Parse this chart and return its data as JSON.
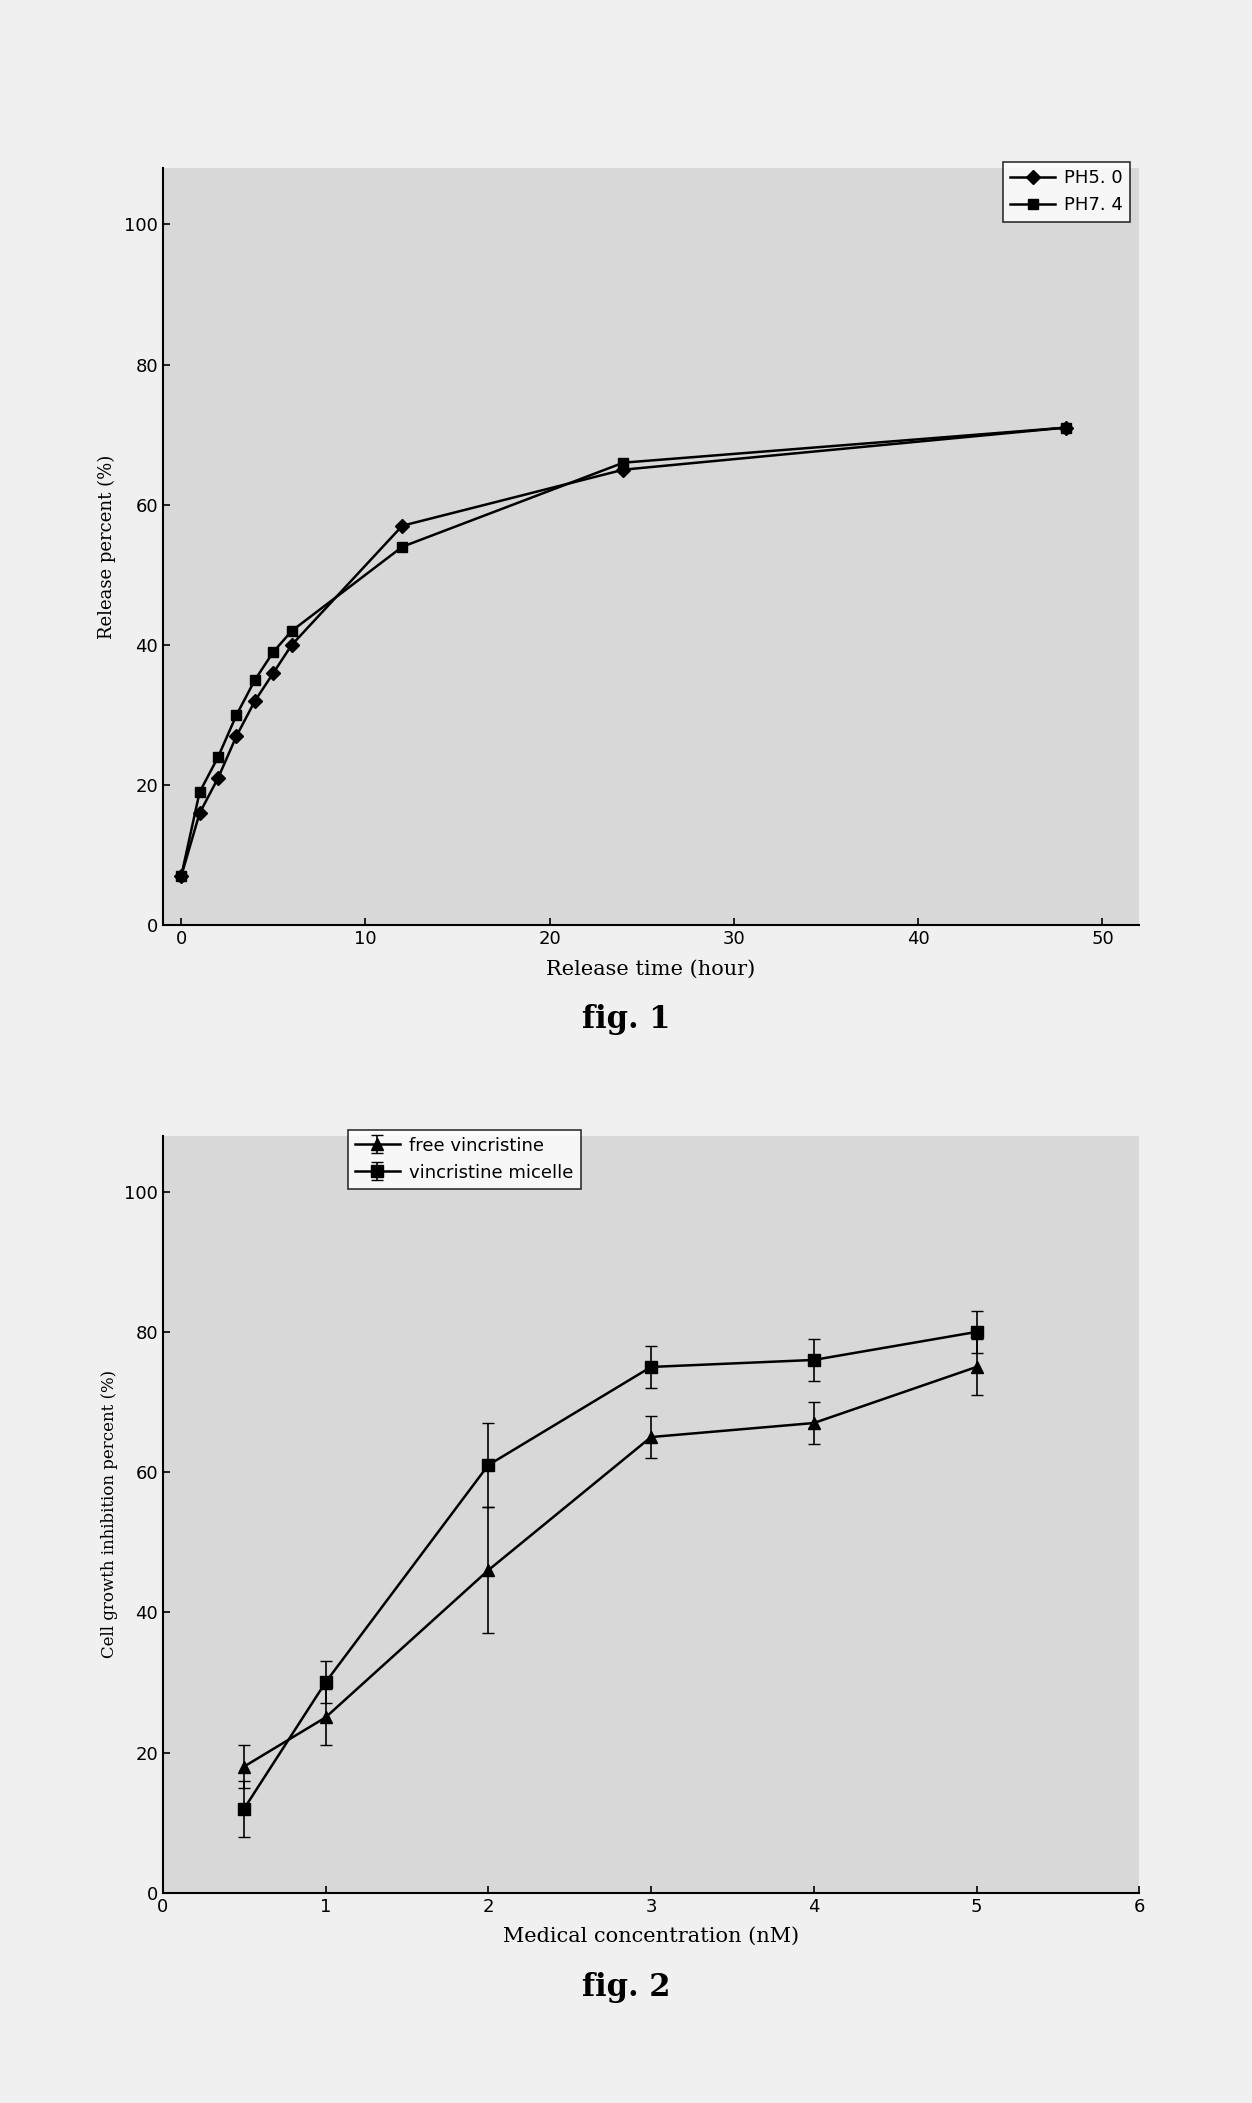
{
  "fig1": {
    "title": "fig. 1",
    "xlabel": "Release time (hour)",
    "ylabel": "Release percent (%)",
    "xlim": [
      -1,
      52
    ],
    "ylim": [
      0,
      108
    ],
    "xticks": [
      0,
      10,
      20,
      30,
      40,
      50
    ],
    "yticks": [
      0,
      20,
      40,
      60,
      80,
      100
    ],
    "ph50_x": [
      0,
      1,
      2,
      3,
      4,
      5,
      6,
      12,
      24,
      48
    ],
    "ph50_y": [
      7,
      16,
      21,
      27,
      32,
      36,
      40,
      57,
      65,
      71
    ],
    "ph74_x": [
      0,
      1,
      2,
      3,
      4,
      5,
      6,
      12,
      24,
      48
    ],
    "ph74_y": [
      7,
      19,
      24,
      30,
      35,
      39,
      42,
      54,
      66,
      71
    ],
    "legend_ph50": "PH5. 0",
    "legend_ph74": "PH7. 4",
    "color": "#000000",
    "background": "#d8d8d8"
  },
  "fig2": {
    "title": "fig. 2",
    "xlabel": "Medical concentration (nM)",
    "ylabel": "Cell growth inhibition percent (%)",
    "xlim": [
      0,
      6
    ],
    "ylim": [
      0,
      108
    ],
    "xticks": [
      0,
      1,
      2,
      3,
      4,
      5,
      6
    ],
    "yticks": [
      0,
      20,
      40,
      60,
      80,
      100
    ],
    "free_x": [
      0.5,
      1.0,
      2.0,
      3.0,
      4.0,
      5.0
    ],
    "free_y": [
      18,
      25,
      46,
      65,
      67,
      75
    ],
    "free_yerr": [
      3,
      4,
      9,
      3,
      3,
      4
    ],
    "micelle_x": [
      0.5,
      1.0,
      2.0,
      3.0,
      4.0,
      5.0
    ],
    "micelle_y": [
      12,
      30,
      61,
      75,
      76,
      80
    ],
    "micelle_yerr": [
      4,
      3,
      6,
      3,
      3,
      3
    ],
    "legend_free": "free vincristine",
    "legend_micelle": "vincristine micelle",
    "color": "#000000",
    "background": "#d8d8d8"
  },
  "fig_background": "#c8c8c8",
  "plot_background": "#d8d8d8"
}
